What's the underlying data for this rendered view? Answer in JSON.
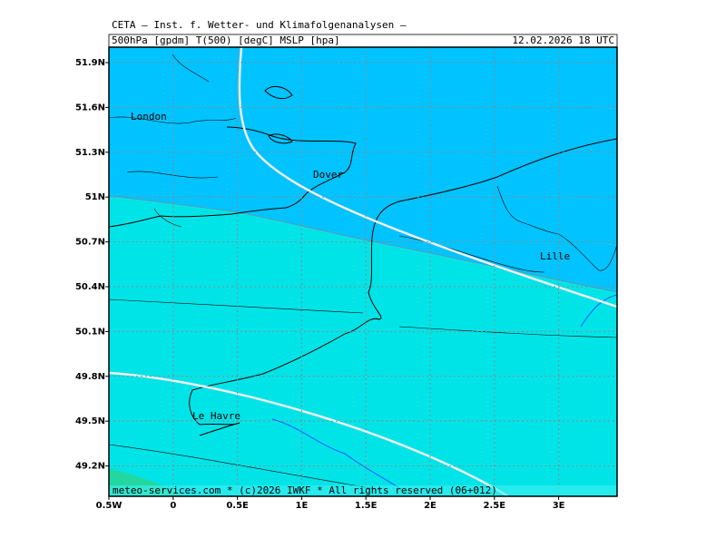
{
  "header": {
    "title": "CETA — Inst. f. Wetter- und Klimafolgenanalysen —",
    "fields": "500hPa [gpdm] T(500) [degC] MSLP [hpa]",
    "datetime": "12.02.2026 18 UTC"
  },
  "map": {
    "lon_ticks": [
      {
        "value": -0.5,
        "label": "0.5W"
      },
      0,
      {
        "value": 0.5,
        "label": "0.5E"
      },
      {
        "value": 1,
        "label": "1E"
      },
      {
        "value": 1.5,
        "label": "1.5E"
      },
      {
        "value": 2,
        "label": "2E"
      },
      {
        "value": 2.5,
        "label": "2.5E"
      },
      {
        "value": 3,
        "label": "3E"
      }
    ],
    "lat_ticks": [
      {
        "value": 51.9,
        "label": "51.9N"
      },
      {
        "value": 51.6,
        "label": "51.6N"
      },
      {
        "value": 51.3,
        "label": "51.3N"
      },
      {
        "value": 51,
        "label": "51N"
      },
      {
        "value": 50.7,
        "label": "50.7N"
      },
      {
        "value": 50.4,
        "label": "50.4N"
      },
      {
        "value": 50.1,
        "label": "50.1N"
      },
      {
        "value": 49.8,
        "label": "49.8N"
      },
      {
        "value": 49.5,
        "label": "49.5N"
      },
      {
        "value": 49.2,
        "label": "49.2N"
      }
    ],
    "places": [
      "London",
      "Dover",
      "Lille",
      "Le Havre"
    ]
  },
  "footer": "meteo-services.com * (c)2026 IWKF * All rights reserved (06+012)"
}
